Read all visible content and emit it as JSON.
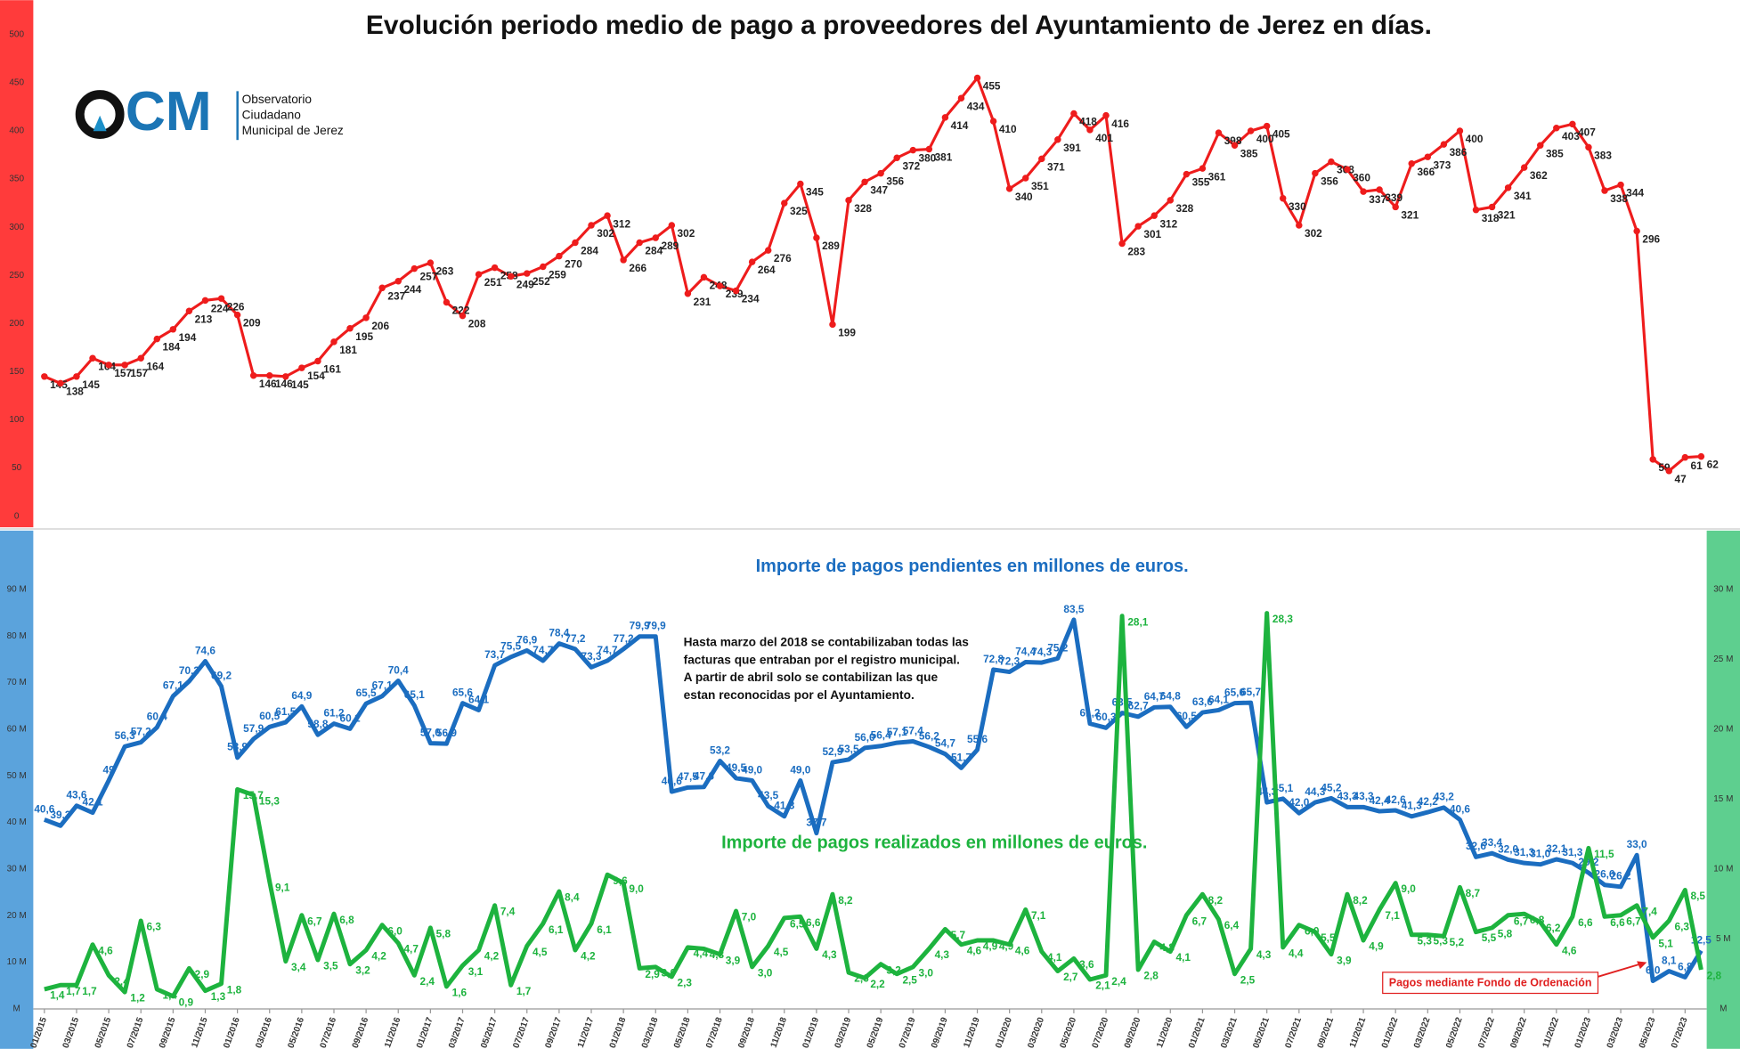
{
  "logo": {
    "mark": "CM",
    "lines": [
      "Observatorio",
      "Ciudadano",
      "Municipal de Jerez"
    ]
  },
  "chart_data": [
    {
      "type": "line",
      "title": "Evolución periodo medio de pago a proveedores del Ayuntamiento de Jerez en días.",
      "color": "#ee1c1c",
      "ylim": [
        0,
        500
      ],
      "yticks": [
        0,
        50,
        100,
        150,
        200,
        250,
        300,
        350,
        400,
        450,
        500
      ],
      "values": [
        145,
        138,
        145,
        164,
        157,
        157,
        164,
        184,
        194,
        213,
        224,
        226,
        209,
        146,
        146,
        145,
        154,
        161,
        181,
        195,
        206,
        237,
        244,
        257,
        263,
        222,
        208,
        251,
        258,
        249,
        252,
        259,
        270,
        284,
        302,
        312,
        266,
        284,
        289,
        302,
        231,
        248,
        239,
        234,
        264,
        276,
        325,
        345,
        289,
        199,
        328,
        347,
        356,
        372,
        380,
        381,
        414,
        434,
        455,
        410,
        340,
        351,
        371,
        391,
        418,
        401,
        416,
        283,
        301,
        312,
        328,
        355,
        361,
        398,
        385,
        400,
        405,
        330,
        302,
        356,
        368,
        360,
        337,
        339,
        321,
        366,
        373,
        386,
        400,
        318,
        321,
        341,
        362,
        385,
        403,
        407,
        383,
        338,
        344,
        296,
        59,
        47,
        61,
        62
      ]
    },
    {
      "type": "line",
      "title": "Importe de pagos pendientes en millones de euros.",
      "subtitle": "Importe de pagos realizados en millones de euros.",
      "note": [
        "Hasta marzo del 2018 se contabilizaban todas las",
        "facturas que entraban por el registro municipal.",
        "A partir de abril solo se contabilizan las que",
        "estan reconocidas por el Ayuntamiento."
      ],
      "annotation": "Pagos mediante Fondo de Ordenación",
      "ylim": [
        0,
        90
      ],
      "yticks": [
        {
          "value": 0,
          "label": "M"
        },
        {
          "value": 10,
          "label": "10 M"
        },
        {
          "value": 20,
          "label": "20 M"
        },
        {
          "value": 30,
          "label": "30 M"
        },
        {
          "value": 40,
          "label": "40 M"
        },
        {
          "value": 50,
          "label": "50 M"
        },
        {
          "value": 60,
          "label": "60 M"
        },
        {
          "value": 70,
          "label": "70 M"
        },
        {
          "value": 80,
          "label": "80 M"
        },
        {
          "value": 90,
          "label": "90 M"
        }
      ],
      "y2lim": [
        0,
        30
      ],
      "y2ticks": [
        {
          "value": 0,
          "label": "M"
        },
        {
          "value": 5,
          "label": "5 M"
        },
        {
          "value": 10,
          "label": "10 M"
        },
        {
          "value": 15,
          "label": "15 M"
        },
        {
          "value": 20,
          "label": "20 M"
        },
        {
          "value": 25,
          "label": "25 M"
        },
        {
          "value": 30,
          "label": "30 M"
        }
      ],
      "categories": [
        "01/2015",
        null,
        "03/2015",
        null,
        "05/2015",
        null,
        "07/2015",
        null,
        "09/2015",
        null,
        "11/2015",
        null,
        "01/2016",
        null,
        "03/2016",
        null,
        "05/2016",
        null,
        "07/2016",
        null,
        "09/2016",
        null,
        "11/2016",
        null,
        "01/2017",
        null,
        "03/2017",
        null,
        "05/2017",
        null,
        "07/2017",
        null,
        "09/2017",
        null,
        "11/2017",
        null,
        "01/2018",
        null,
        "03/2018",
        null,
        "05/2018",
        null,
        "07/2018",
        null,
        "09/2018",
        null,
        "11/2018",
        null,
        "01/2019",
        null,
        "03/2019",
        null,
        "05/2019",
        null,
        "07/2019",
        null,
        "09/2019",
        null,
        "11/2019",
        null,
        "01/2020",
        null,
        "03/2020",
        null,
        "05/2020",
        null,
        "07/2020",
        null,
        "09/2020",
        null,
        "11/2020",
        null,
        "01/2021",
        null,
        "03/2021",
        null,
        "05/2021",
        null,
        "07/2021",
        null,
        "09/2021",
        null,
        "11/2021",
        null,
        "01/2022",
        null,
        "03/2022",
        null,
        "05/2022",
        null,
        "07/2022",
        null,
        "09/2022",
        null,
        "11/2022",
        null,
        "01/2023",
        null,
        "03/2023",
        null,
        "05/2023",
        null,
        "07/2023",
        null
      ],
      "series": [
        {
          "color": "#1b6dc0",
          "values": [
            40.6,
            39.3,
            43.6,
            42.1,
            49.0,
            56.3,
            57.2,
            60.4,
            67.1,
            70.3,
            74.6,
            69.2,
            53.9,
            57.9,
            60.5,
            61.5,
            64.9,
            58.8,
            61.2,
            60.1,
            65.5,
            67.1,
            70.4,
            65.1,
            57.0,
            56.9,
            65.6,
            64.1,
            73.7,
            75.5,
            76.9,
            74.7,
            78.4,
            77.2,
            73.3,
            74.7,
            77.2,
            79.9,
            79.9,
            46.6,
            47.5,
            47.6,
            53.2,
            49.5,
            49.0,
            43.5,
            41.3,
            49.0,
            37.7,
            52.9,
            53.5,
            56.0,
            56.4,
            57.1,
            57.4,
            56.2,
            54.7,
            51.7,
            55.6,
            72.8,
            72.3,
            74.4,
            74.3,
            75.2,
            83.5,
            61.2,
            60.3,
            63.5,
            62.7,
            64.7,
            64.8,
            60.5,
            63.6,
            64.1,
            65.6,
            65.7,
            44.3,
            45.1,
            42.0,
            44.3,
            45.2,
            43.3,
            43.3,
            42.4,
            42.6,
            41.3,
            42.2,
            43.2,
            40.6,
            32.6,
            33.4,
            32.0,
            31.3,
            31.0,
            32.1,
            31.3,
            29.2,
            26.6,
            26.2,
            33.0,
            6.0,
            8.1,
            6.8,
            12.5
          ],
          "value_labels": [
            "40,6",
            "39,3",
            "43,6",
            "42,1",
            "49",
            "56,3",
            "57,2",
            "60,4",
            "67,1",
            "70,3",
            "74,6",
            "69,2",
            "53,9",
            "57,9",
            "60,5",
            "61,5",
            "64,9",
            "58,8",
            "61,2",
            "60,1",
            "65,5",
            "67,1",
            "70,4",
            "65,1",
            "57,0",
            "56,9",
            "65,6",
            "64,1",
            "73,7",
            "75,5",
            "76,9",
            "74,7",
            "78,4",
            "77,2",
            "73,3",
            "74,7",
            "77,2",
            "79,9",
            "79,9",
            "46,6",
            "47,5",
            "47,6",
            "53,2",
            "49,5",
            "49,0",
            "43,5",
            "41,3",
            "49,0",
            "37,7",
            "52,9",
            "53,5",
            "56,0",
            "56,4",
            "57,1",
            "57,4",
            "56,2",
            "54,7",
            "51,7",
            "55,6",
            "72,8",
            "72,3",
            "74,4",
            "74,3",
            "75,2",
            "83,5",
            "61,2",
            "60,3",
            "63,5",
            "62,7",
            "64,7",
            "64,8",
            "60,5",
            "63,6",
            "64,1",
            "65,6",
            "65,7",
            "44,3",
            "45,1",
            "42,0",
            "44,3",
            "45,2",
            "43,3",
            "43,3",
            "42,4",
            "42,6",
            "41,3",
            "42,2",
            "43,2",
            "40,6",
            "32,6",
            "33,4",
            "32,0",
            "31,3",
            "31,0",
            "32,1",
            "31,3",
            "29,2",
            "26,6",
            "26,2",
            "33,0",
            "6,0",
            "8,1",
            "6,8",
            "12,5"
          ]
        },
        {
          "color": "#1db33e",
          "axis": "y2",
          "values": [
            1.4,
            1.7,
            1.7,
            4.6,
            2.4,
            1.2,
            6.3,
            1.4,
            0.9,
            2.9,
            1.3,
            1.8,
            15.7,
            15.3,
            9.1,
            3.4,
            6.7,
            3.5,
            6.8,
            3.2,
            4.2,
            6.0,
            4.7,
            2.4,
            5.8,
            1.6,
            3.1,
            4.2,
            7.4,
            1.7,
            4.5,
            6.1,
            8.4,
            4.2,
            6.1,
            9.6,
            9.0,
            2.9,
            3.0,
            2.3,
            4.4,
            4.3,
            3.9,
            7.0,
            3.0,
            4.5,
            6.5,
            6.6,
            4.3,
            8.2,
            2.6,
            2.2,
            3.2,
            2.5,
            3.0,
            4.3,
            5.7,
            4.6,
            4.9,
            4.9,
            4.6,
            7.1,
            4.1,
            2.7,
            3.6,
            2.1,
            2.4,
            28.1,
            2.8,
            4.8,
            4.1,
            6.7,
            8.2,
            6.4,
            2.5,
            4.3,
            28.3,
            4.4,
            6.0,
            5.5,
            3.9,
            8.2,
            4.9,
            7.1,
            9.0,
            5.3,
            5.3,
            5.2,
            8.7,
            5.5,
            5.8,
            6.7,
            6.8,
            6.2,
            4.6,
            6.6,
            11.5,
            6.6,
            6.7,
            7.4,
            5.1,
            6.3,
            8.5,
            2.8
          ],
          "value_labels": [
            "1,4",
            "1,7",
            "1,7",
            "4,6",
            "2,4",
            "1,2",
            "6,3",
            "1,4",
            "0,9",
            "2,9",
            "1,3",
            "1,8",
            "15,7",
            "15,3",
            "9,1",
            "3,4",
            "6,7",
            "3,5",
            "6,8",
            "3,2",
            "4,2",
            "6,0",
            "4,7",
            "2,4",
            "5,8",
            "1,6",
            "3,1",
            "4,2",
            "7,4",
            "1,7",
            "4,5",
            "6,1",
            "8,4",
            "4,2",
            "6,1",
            "9,6",
            "9,0",
            "2,9",
            "3,0",
            "2,3",
            "4,4",
            "4,3",
            "3,9",
            "7,0",
            "3,0",
            "4,5",
            "6,5",
            "6,6",
            "4,3",
            "8,2",
            "2,6",
            "2,2",
            "3,2",
            "2,5",
            "3,0",
            "4,3",
            "5,7",
            "4,6",
            "4,9",
            "4,9",
            "4,6",
            "7,1",
            "4,1",
            "2,7",
            "3,6",
            "2,1",
            "2,4",
            "28,1",
            "2,8",
            "4,8",
            "4,1",
            "6,7",
            "8,2",
            "6,4",
            "2,5",
            "4,3",
            "28,3",
            "4,4",
            "6,0",
            "5,5",
            "3,9",
            "8,2",
            "4,9",
            "7,1",
            "9,0",
            "5,3",
            "5,3",
            "5,2",
            "8,7",
            "5,5",
            "5,8",
            "6,7",
            "6,8",
            "6,2",
            "4,6",
            "6,6",
            "11,5",
            "6,6",
            "6,7",
            "7,4",
            "5,1",
            "6,3",
            "8,5",
            "2,8"
          ]
        }
      ]
    }
  ]
}
